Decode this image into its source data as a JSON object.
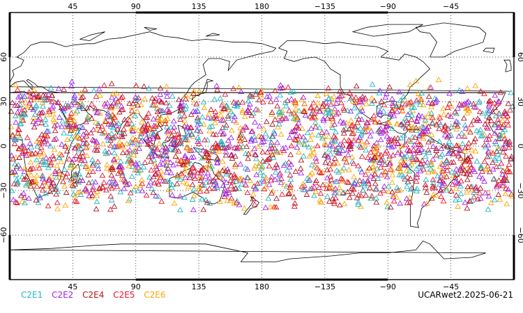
{
  "map": {
    "projection": "cylindrical equidistant, centered on 180",
    "grid": true,
    "lon_ticks": [
      "45",
      "90",
      "135",
      "180",
      "−135",
      "−90",
      "−45"
    ],
    "lon_tick_values": [
      45,
      90,
      135,
      180,
      -135,
      -90,
      -45
    ],
    "lat_ticks": [
      "60",
      "30",
      "0",
      "−30",
      "−60"
    ],
    "lat_tick_values": [
      60,
      30,
      0,
      -30,
      -60
    ],
    "lat_range": [
      -90,
      90
    ],
    "lon_range": [
      0,
      360
    ],
    "marker": "open-triangle",
    "occultation_lat_range": [
      -45,
      45
    ]
  },
  "legend": [
    {
      "label": "C2E1",
      "color": "#1fb5c2"
    },
    {
      "label": "C2E2",
      "color": "#a020f0"
    },
    {
      "label": "C2E4",
      "color": "#b4141e"
    },
    {
      "label": "C2E5",
      "color": "#e8112d"
    },
    {
      "label": "C2E6",
      "color": "#ffa500"
    }
  ],
  "footer": {
    "title": "UCARwet2.2025-06-21"
  }
}
